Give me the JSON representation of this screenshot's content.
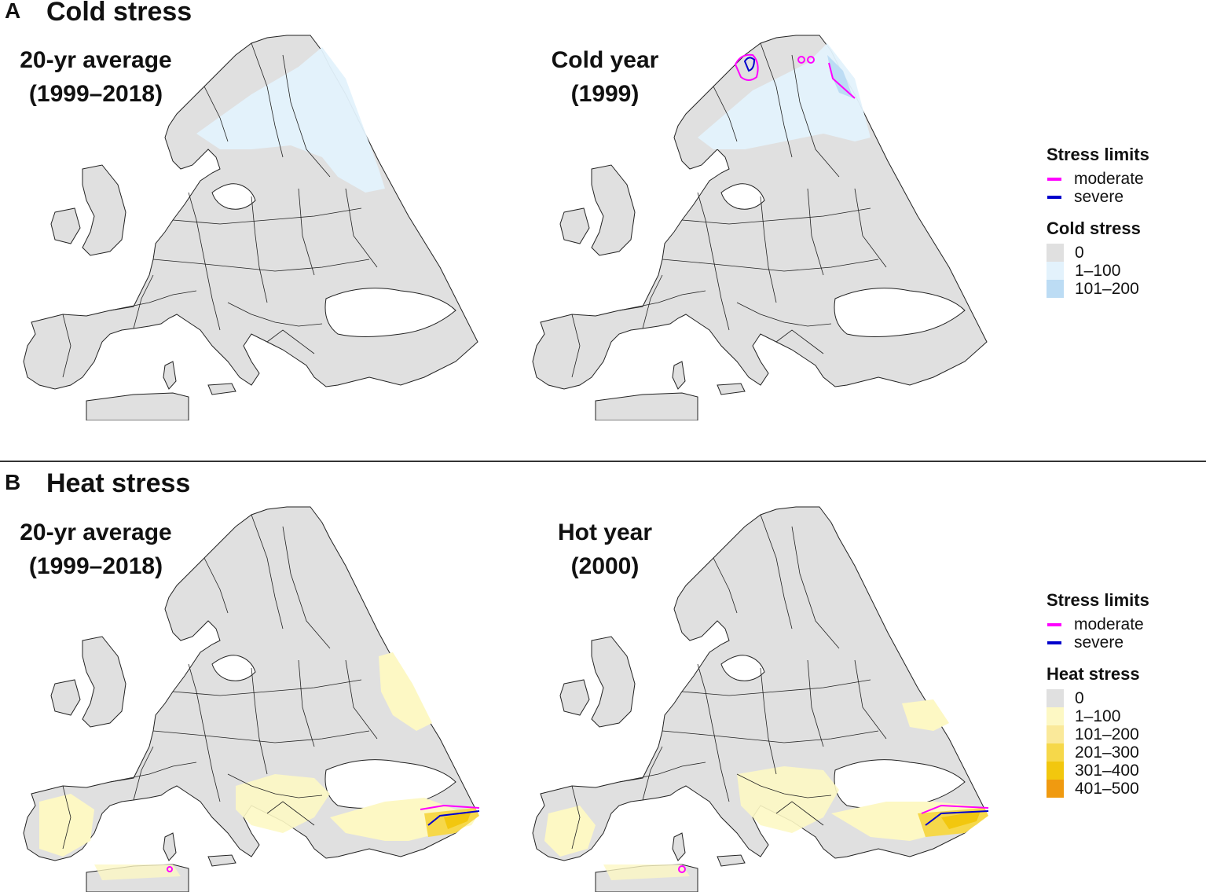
{
  "panels": [
    {
      "letter": "A",
      "title": "Cold stress",
      "maps": [
        {
          "line1": "20-yr average",
          "line2": "(1999–2018)"
        },
        {
          "line1": "Cold year",
          "line2": "(1999)"
        }
      ],
      "legend": {
        "limits_title": "Stress limits",
        "limits": [
          {
            "label": "moderate",
            "color": "#ff00ff"
          },
          {
            "label": "severe",
            "color": "#0000cc"
          }
        ],
        "scale_title": "Cold stress",
        "classes": [
          {
            "label": "0",
            "color": "#e0e0e0"
          },
          {
            "label": "1–100",
            "color": "#e3f2fc"
          },
          {
            "label": "101–200",
            "color": "#bcdcf4"
          }
        ]
      }
    },
    {
      "letter": "B",
      "title": "Heat stress",
      "maps": [
        {
          "line1": "20-yr average",
          "line2": "(1999–2018)"
        },
        {
          "line1": "Hot year",
          "line2": "(2000)"
        }
      ],
      "legend": {
        "limits_title": "Stress limits",
        "limits": [
          {
            "label": "moderate",
            "color": "#ff00ff"
          },
          {
            "label": "severe",
            "color": "#0000cc"
          }
        ],
        "scale_title": "Heat stress",
        "classes": [
          {
            "label": "0",
            "color": "#e0e0e0"
          },
          {
            "label": "1–100",
            "color": "#fdf8c4"
          },
          {
            "label": "101–200",
            "color": "#fae99a"
          },
          {
            "label": "201–300",
            "color": "#f6d84a"
          },
          {
            "label": "301–400",
            "color": "#f2c70e"
          },
          {
            "label": "401–500",
            "color": "#f09a10"
          }
        ]
      }
    }
  ]
}
